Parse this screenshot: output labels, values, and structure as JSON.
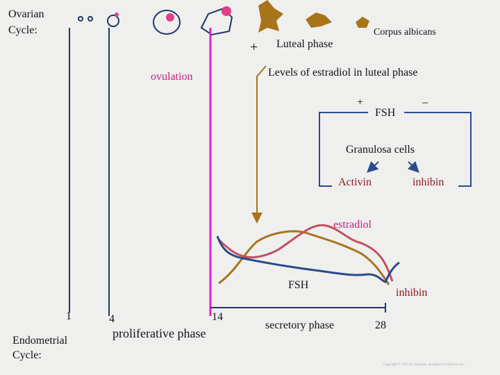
{
  "ovarian_cycle_label": [
    "Ovarian",
    "Cycle:"
  ],
  "corpus_albicans": "Corpus albicans",
  "luteal_plus": "+",
  "luteal_phase": "Luteal phase",
  "ovulation": "ovulation",
  "levels_label": "Levels of estradiol in luteal phase",
  "feedback": {
    "plus": "+",
    "fsh": "FSH",
    "minus": "–",
    "granulosa": "Granulosa cells",
    "activin": "Activin",
    "inhibin": "inhibin"
  },
  "curves": {
    "estradiol": "estradiol",
    "fsh": "FSH",
    "inhibin": "inhibin"
  },
  "days": {
    "day1": "1",
    "day4": "4",
    "day14": "14",
    "day28": "28"
  },
  "proliferative_phase": "proliferative phase",
  "secretory_phase": "secretory phase",
  "endometrial_cycle_label": [
    "Endometrial",
    "Cycle:"
  ],
  "copyright": "Copyright © 2011 by Saunders, an imprint of Elsevier Inc."
}
